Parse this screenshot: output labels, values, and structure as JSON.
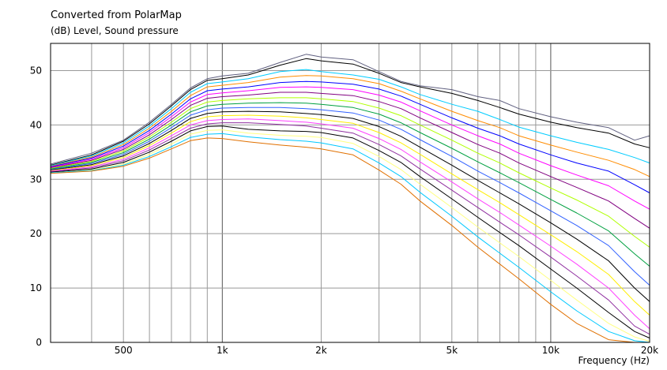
{
  "chart_data": {
    "type": "line",
    "title": "Converted from PolarMap",
    "subtitle": "(dB)  Level, Sound pressure",
    "xlabel": "Frequency  (Hz)",
    "ylabel": "(dB)  Level, Sound pressure",
    "x_scale": "log",
    "xlim": [
      300,
      20000
    ],
    "ylim": [
      0,
      55
    ],
    "grid": true,
    "legend": "none",
    "x_ticks": [
      {
        "value": 500,
        "label": "500"
      },
      {
        "value": 1000,
        "label": "1k"
      },
      {
        "value": 2000,
        "label": "2k"
      },
      {
        "value": 5000,
        "label": "5k"
      },
      {
        "value": 10000,
        "label": "10k"
      },
      {
        "value": 20000,
        "label": "20k"
      }
    ],
    "y_ticks": [
      0,
      10,
      20,
      30,
      40,
      50
    ],
    "x": [
      300,
      400,
      500,
      600,
      700,
      800,
      900,
      1000,
      1200,
      1500,
      1800,
      2000,
      2500,
      3000,
      3500,
      4000,
      5000,
      6000,
      7000,
      8000,
      10000,
      12000,
      15000,
      18000,
      20000
    ],
    "series": [
      {
        "color": "#606080",
        "values": [
          32.8,
          34.8,
          37.2,
          40.5,
          43.8,
          46.8,
          48.5,
          49.0,
          49.5,
          51.5,
          53.0,
          52.5,
          52.0,
          49.8,
          48.0,
          47.2,
          46.5,
          45.2,
          44.5,
          43.0,
          41.5,
          40.5,
          39.5,
          37.2,
          38.0
        ]
      },
      {
        "color": "#000000",
        "values": [
          32.6,
          34.5,
          37.0,
          40.2,
          43.5,
          46.5,
          48.2,
          48.5,
          49.2,
          51.0,
          52.2,
          51.8,
          51.2,
          49.5,
          47.8,
          47.0,
          45.8,
          44.5,
          43.2,
          42.0,
          40.5,
          39.5,
          38.5,
          36.5,
          35.8
        ]
      },
      {
        "color": "#00ccff",
        "values": [
          32.5,
          34.3,
          36.7,
          39.8,
          43.0,
          46.0,
          47.6,
          47.9,
          48.5,
          49.8,
          50.2,
          49.8,
          49.2,
          48.4,
          47.0,
          45.6,
          43.8,
          42.5,
          41.0,
          39.6,
          38.0,
          36.8,
          35.5,
          34.0,
          33.0
        ]
      },
      {
        "color": "#ff8c00",
        "values": [
          32.4,
          34.1,
          36.4,
          39.4,
          42.5,
          45.4,
          47.0,
          47.3,
          47.8,
          48.8,
          49.1,
          49.0,
          48.5,
          47.6,
          46.2,
          44.8,
          42.5,
          40.8,
          39.5,
          38.0,
          36.3,
          35.0,
          33.5,
          31.8,
          30.5
        ]
      },
      {
        "color": "#0000ff",
        "values": [
          32.3,
          33.9,
          36.1,
          39.0,
          42.0,
          44.8,
          46.3,
          46.6,
          47.0,
          47.8,
          48.0,
          47.9,
          47.5,
          46.6,
          45.3,
          43.8,
          41.3,
          39.4,
          38.0,
          36.5,
          34.5,
          33.0,
          31.5,
          29.0,
          27.5
        ]
      },
      {
        "color": "#ff00ff",
        "values": [
          32.2,
          33.7,
          35.8,
          38.6,
          41.5,
          44.2,
          45.6,
          45.9,
          46.3,
          46.9,
          47.0,
          46.9,
          46.5,
          45.5,
          44.2,
          42.6,
          40.0,
          38.0,
          36.5,
          34.8,
          32.5,
          30.8,
          28.8,
          26.0,
          24.5
        ]
      },
      {
        "color": "#800080",
        "values": [
          32.1,
          33.5,
          35.5,
          38.2,
          41.0,
          43.6,
          44.9,
          45.2,
          45.5,
          46.0,
          46.0,
          45.8,
          45.4,
          44.3,
          43.0,
          41.3,
          38.6,
          36.4,
          34.8,
          33.0,
          30.5,
          28.5,
          26.0,
          22.8,
          21.0
        ]
      },
      {
        "color": "#b0ff00",
        "values": [
          32.0,
          33.3,
          35.2,
          37.8,
          40.5,
          43.0,
          44.2,
          44.5,
          44.8,
          45.0,
          45.0,
          44.8,
          44.3,
          43.1,
          41.7,
          40.0,
          37.2,
          34.8,
          33.0,
          31.2,
          28.4,
          26.2,
          23.2,
          19.5,
          17.5
        ]
      },
      {
        "color": "#00a040",
        "values": [
          31.9,
          33.1,
          34.9,
          37.4,
          40.0,
          42.4,
          43.5,
          43.8,
          44.0,
          44.1,
          44.0,
          43.8,
          43.2,
          42.0,
          40.4,
          38.6,
          35.7,
          33.2,
          31.2,
          29.4,
          26.3,
          23.8,
          20.5,
          16.3,
          14.0
        ]
      },
      {
        "color": "#3060ff",
        "values": [
          31.8,
          32.9,
          34.6,
          37.0,
          39.5,
          41.8,
          42.8,
          43.1,
          43.2,
          43.2,
          43.0,
          42.8,
          42.2,
          40.9,
          39.2,
          37.3,
          34.2,
          31.5,
          29.4,
          27.5,
          24.2,
          21.5,
          17.8,
          13.0,
          10.5
        ]
      },
      {
        "color": "#000000",
        "values": [
          31.7,
          32.7,
          34.3,
          36.6,
          39.0,
          41.2,
          42.1,
          42.4,
          42.5,
          42.4,
          42.1,
          41.9,
          41.2,
          39.7,
          37.9,
          35.9,
          32.6,
          29.8,
          27.5,
          25.5,
          22.0,
          19.0,
          15.0,
          10.0,
          7.5
        ]
      },
      {
        "color": "#ffee00",
        "values": [
          31.6,
          32.5,
          34.0,
          36.2,
          38.5,
          40.6,
          41.5,
          41.7,
          41.8,
          41.6,
          41.3,
          41.0,
          40.3,
          38.6,
          36.7,
          34.6,
          31.0,
          28.1,
          25.7,
          23.5,
          19.8,
          16.7,
          12.5,
          7.5,
          5.0
        ]
      },
      {
        "color": "#ff40ff",
        "values": [
          31.5,
          32.3,
          33.7,
          35.8,
          38.0,
          40.0,
          40.8,
          41.0,
          41.1,
          40.8,
          40.5,
          40.2,
          39.4,
          37.5,
          35.5,
          33.2,
          29.5,
          26.4,
          23.9,
          21.6,
          17.7,
          14.4,
          10.0,
          5.0,
          2.5
        ]
      },
      {
        "color": "#9030a0",
        "values": [
          31.4,
          32.1,
          33.4,
          35.4,
          37.5,
          39.4,
          40.2,
          40.4,
          40.4,
          40.1,
          39.8,
          39.4,
          38.5,
          36.4,
          34.3,
          31.9,
          28.0,
          24.8,
          22.1,
          19.8,
          15.7,
          12.2,
          7.8,
          3.0,
          1.5
        ]
      },
      {
        "color": "#000000",
        "values": [
          31.3,
          31.9,
          33.1,
          35.0,
          37.0,
          38.9,
          39.7,
          39.8,
          39.2,
          38.9,
          38.8,
          38.6,
          37.6,
          35.3,
          33.1,
          30.5,
          26.4,
          23.0,
          20.2,
          17.8,
          13.5,
          10.0,
          5.5,
          2.0,
          0.8
        ]
      },
      {
        "color": "#ffff80",
        "values": [
          31.2,
          31.7,
          32.8,
          34.6,
          36.5,
          38.3,
          39.0,
          39.1,
          38.5,
          38.1,
          37.9,
          37.7,
          36.6,
          34.2,
          31.8,
          29.1,
          24.8,
          21.2,
          18.3,
          15.8,
          11.4,
          7.8,
          3.5,
          1.0,
          0.2
        ]
      },
      {
        "color": "#00c8ff",
        "values": [
          31.2,
          31.6,
          32.6,
          34.2,
          36.0,
          37.7,
          38.3,
          38.4,
          37.8,
          37.3,
          37.0,
          36.7,
          35.6,
          33.0,
          30.5,
          27.6,
          23.2,
          19.4,
          16.4,
          13.8,
          9.3,
          5.8,
          2.0,
          0.3,
          0.0
        ]
      },
      {
        "color": "#e07000",
        "values": [
          31.1,
          31.5,
          32.4,
          33.9,
          35.6,
          37.1,
          37.6,
          37.5,
          36.9,
          36.3,
          35.9,
          35.6,
          34.5,
          31.7,
          29.1,
          26.0,
          21.5,
          17.5,
          14.4,
          11.7,
          7.0,
          3.5,
          0.5,
          0.0,
          0.0
        ]
      }
    ]
  }
}
